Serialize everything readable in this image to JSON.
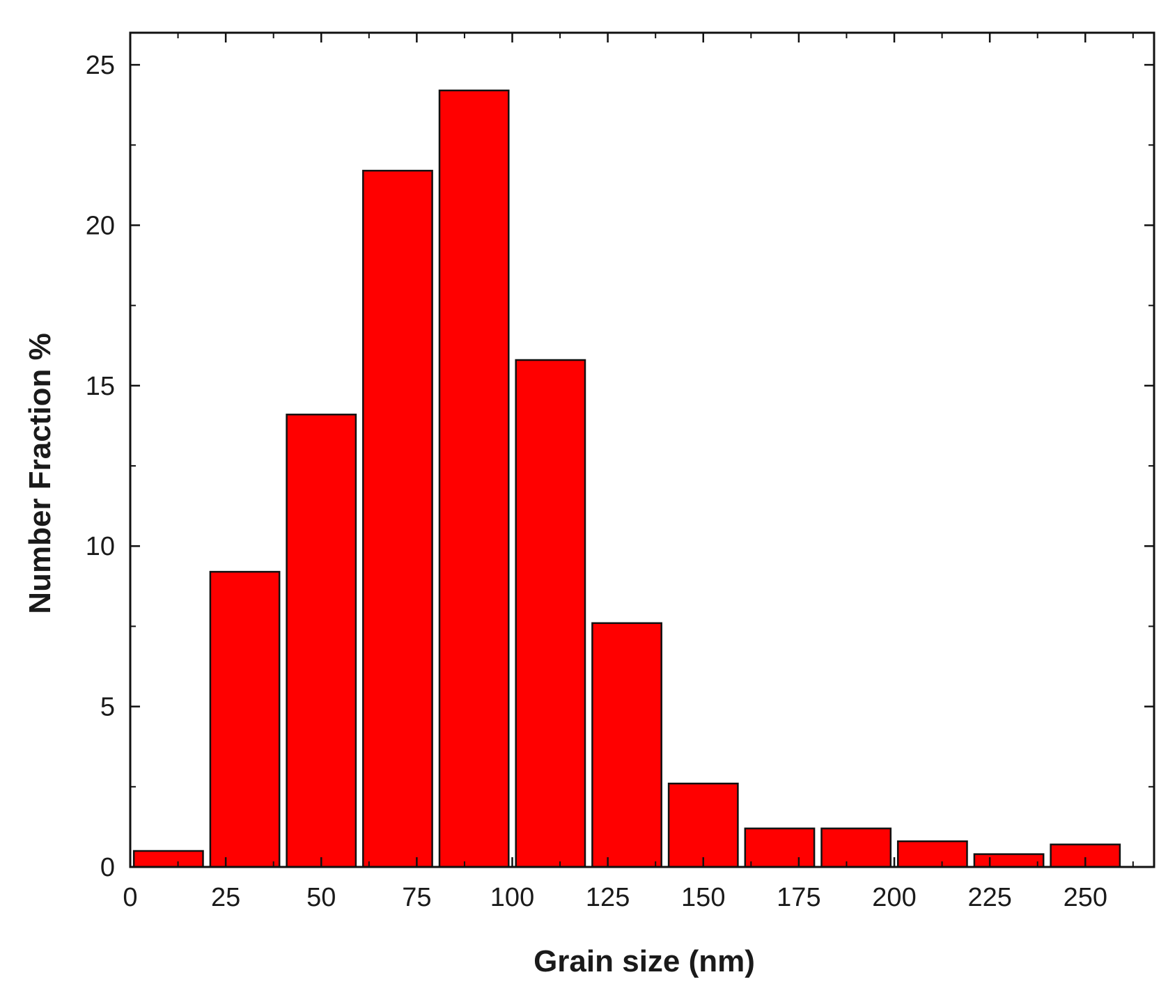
{
  "chart_data": {
    "type": "bar",
    "title": "",
    "xlabel": "Grain size (nm)",
    "ylabel": "Number Fraction %",
    "bin_width": 20,
    "x": [
      10,
      30,
      50,
      70,
      90,
      110,
      130,
      150,
      170,
      190,
      210,
      230,
      250
    ],
    "values": [
      0.5,
      9.2,
      14.1,
      21.7,
      24.2,
      15.8,
      7.6,
      2.6,
      1.2,
      1.2,
      0.8,
      0.4,
      0.7
    ],
    "xlim": [
      0,
      268
    ],
    "ylim": [
      0,
      26
    ],
    "x_ticks": [
      0,
      25,
      50,
      75,
      100,
      125,
      150,
      175,
      200,
      225,
      250
    ],
    "x_tick_labels": [
      "0",
      "25",
      "50",
      "75",
      "100",
      "125",
      "150",
      "175",
      "200",
      "225",
      "250"
    ],
    "y_ticks": [
      0,
      5,
      10,
      15,
      20,
      25
    ],
    "y_tick_labels": [
      "0",
      "5",
      "10",
      "15",
      "20",
      "25"
    ],
    "bar_color": "#ff0000",
    "bar_edge_color": "#111111",
    "grid": false,
    "legend": false
  }
}
